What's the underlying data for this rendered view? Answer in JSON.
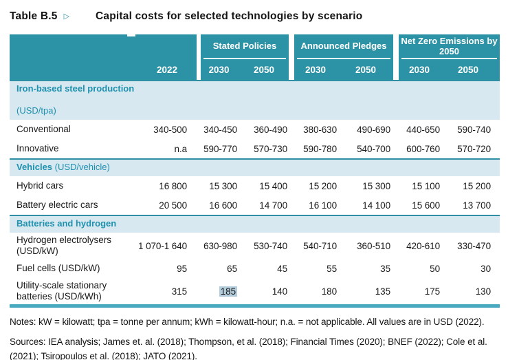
{
  "title": {
    "label": "Table B.5",
    "arrow": "▷",
    "text": "Capital costs for selected technologies by scenario"
  },
  "table": {
    "header": {
      "base_year": "2022",
      "groups": [
        {
          "name": "Stated Policies",
          "years": [
            "2030",
            "2050"
          ]
        },
        {
          "name": "Announced Pledges",
          "years": [
            "2030",
            "2050"
          ]
        },
        {
          "name": "Net Zero Emissions by 2050",
          "years": [
            "2030",
            "2050"
          ]
        }
      ]
    },
    "sections": [
      {
        "name": "Iron-based steel production",
        "unit": "(USD/tpa)",
        "unit_inline": false,
        "rows": [
          {
            "label": "Conventional",
            "values": [
              "340-500",
              "340-450",
              "360-490",
              "380-630",
              "490-690",
              "440-650",
              "590-740"
            ]
          },
          {
            "label": "Innovative",
            "values": [
              "n.a",
              "590-770",
              "570-730",
              "590-780",
              "540-700",
              "600-760",
              "570-720"
            ]
          }
        ]
      },
      {
        "name": "Vehicles",
        "unit": "(USD/vehicle)",
        "unit_inline": true,
        "rows": [
          {
            "label": "Hybrid cars",
            "values": [
              "16 800",
              "15 300",
              "15 400",
              "15 200",
              "15 300",
              "15 100",
              "15 200"
            ]
          },
          {
            "label": "Battery electric cars",
            "values": [
              "20 500",
              "16 600",
              "14 700",
              "16 100",
              "14 100",
              "15 600",
              "13 700"
            ]
          }
        ]
      },
      {
        "name": "Batteries and hydrogen",
        "unit": "",
        "unit_inline": true,
        "rows": [
          {
            "label": "Hydrogen electrolysers (USD/kW)",
            "values": [
              "1 070-1 640",
              "630-980",
              "530-740",
              "540-710",
              "360-510",
              "420-610",
              "330-470"
            ]
          },
          {
            "label": "Fuel cells (USD/kW)",
            "values": [
              "95",
              "65",
              "45",
              "55",
              "35",
              "50",
              "30"
            ]
          },
          {
            "label": "Utility-scale stationary batteries (USD/kWh)",
            "values": [
              "315",
              "185",
              "140",
              "180",
              "135",
              "175",
              "130"
            ],
            "highlight_col": 1
          }
        ]
      }
    ],
    "colors": {
      "header_teal": "#2C92A5",
      "section_band": "#D8E8F1",
      "section_text": "#1D91AD",
      "bottom_rule": "#47A9BE",
      "highlight": "#B3CDDC"
    }
  },
  "notes": "Notes: kW = kilowatt; tpa = tonne per annum; kWh = kilowatt-hour; n.a. = not applicable. All values are in USD (2022).",
  "sources": "Sources: IEA analysis; James et. al. (2018); Thompson, et al. (2018); Financial Times (2020); BNEF (2022); Cole et al. (2021); Tsiropoulos et al. (2018); JATO (2021)."
}
